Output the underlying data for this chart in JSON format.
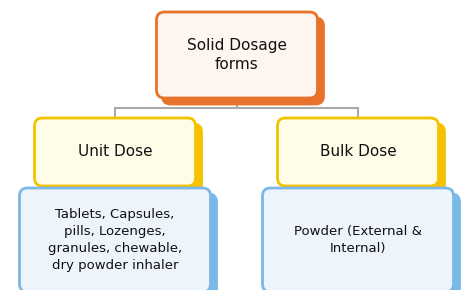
{
  "title": "Solid Dosage\nforms",
  "level2_left": "Unit Dose",
  "level2_right": "Bulk Dose",
  "level3_left": "Tablets, Capsules,\npills, Lozenges,\ngranules, chewable,\ndry powder inhaler",
  "level3_right": "Powder (External &\nInternal)",
  "bg_color": "#ffffff",
  "box1_face": "#fff5f0",
  "box1_edge": "#e8722a",
  "box1_shadow": "#e8722a",
  "box2_face": "#fffde8",
  "box2_edge": "#f5c200",
  "box2_shadow": "#f5c200",
  "box3_face": "#eef4fc",
  "box3_edge": "#7ab8e8",
  "box3_shadow": "#7ab8e8",
  "line_color": "#aaaaaa",
  "text_color": "#111111",
  "font_size_top": 11,
  "font_size_mid": 11,
  "font_size_bot": 9.5
}
